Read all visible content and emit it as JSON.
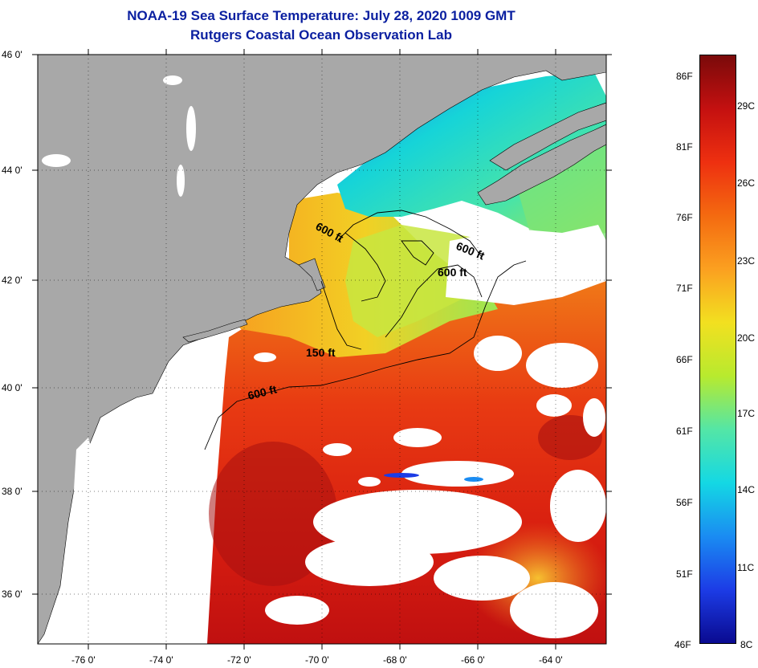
{
  "title": "NOAA-19 Sea Surface Temperature:  July 28, 2020 1009 GMT",
  "subtitle": "Rutgers Coastal Ocean Observation Lab",
  "lat_labels": [
    "46 0'",
    "44 0'",
    "42 0'",
    "40 0'",
    "38 0'",
    "36 0'"
  ],
  "lon_labels": [
    "-76 0'",
    "-74 0'",
    "-72 0'",
    "-70 0'",
    "-68 0'",
    "-66 0'",
    "-64 0'"
  ],
  "contours": {
    "c600a": "600 ft",
    "c600b": "600 ft",
    "c600c": "600 ft",
    "c150": "150 ft",
    "c600d": "600 ft"
  },
  "colorbar": {
    "fahrenheit": [
      "86F",
      "81F",
      "76F",
      "71F",
      "66F",
      "61F",
      "56F",
      "51F",
      "46F"
    ],
    "celsius": [
      "29C",
      "26C",
      "23C",
      "20C",
      "17C",
      "14C",
      "11C",
      "8C"
    ],
    "colors": [
      "#7a0a0a",
      "#c41010",
      "#ee3010",
      "#f46a10",
      "#fba020",
      "#f2e020",
      "#b8ea2e",
      "#54e6a6",
      "#14d8e4",
      "#1a8cf2",
      "#1c3ce6",
      "#0a0a90"
    ]
  },
  "colors": {
    "land": "#a8a8a8",
    "cloud": "#ffffff",
    "title": "#0a1fa0"
  }
}
